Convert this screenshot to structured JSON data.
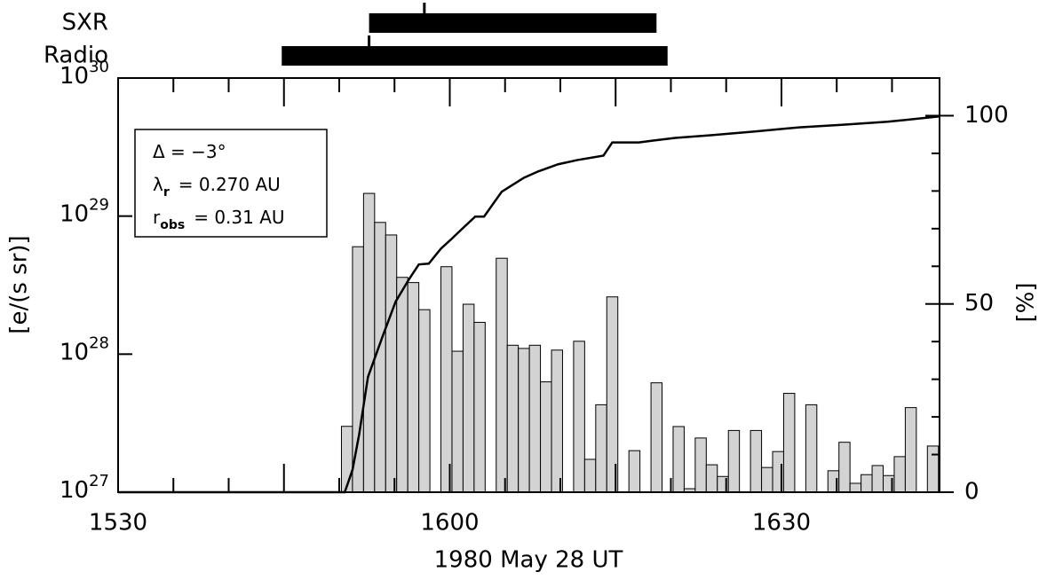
{
  "chart_data": {
    "type": "histogram",
    "x_label": "1980 May 28 UT",
    "y_label": "[e/(s sr)]",
    "y2_label": "[%]",
    "xlim": [
      30,
      104.3
    ],
    "xticks": [
      {
        "value": 30,
        "label": "1530"
      },
      {
        "value": 60,
        "label": "1600"
      },
      {
        "value": 90,
        "label": "1630"
      }
    ],
    "x_minor_ticks": [
      35,
      40,
      45,
      50,
      55,
      65,
      70,
      75,
      80,
      85,
      95,
      100
    ],
    "yscale": "log",
    "ylim": [
      1e+27,
      1e+30
    ],
    "yticks": [
      {
        "value": 1e+27,
        "label": "10",
        "exponent": "27"
      },
      {
        "value": 1e+28,
        "label": "10",
        "exponent": "28"
      },
      {
        "value": 1e+29,
        "label": "10",
        "exponent": "29"
      },
      {
        "value": 1e+30,
        "label": "10",
        "exponent": "30"
      }
    ],
    "y2lim": [
      0,
      110
    ],
    "y2ticks": [
      0,
      50,
      100
    ],
    "y2_minor_ticks": [
      10,
      20,
      30,
      40,
      60,
      70,
      80,
      90
    ],
    "color": "#d3d3d3",
    "bins": [
      50.2,
      51.2,
      52.2,
      53.2,
      54.2,
      55.2,
      56.2,
      57.2,
      58.2,
      59.2,
      60.2,
      61.2,
      62.2,
      63.2,
      64.2,
      65.2,
      66.2,
      67.2,
      68.2,
      69.2,
      70.2,
      71.2,
      72.2,
      73.2,
      74.2,
      75.2,
      76.2,
      77.2,
      78.2,
      79.2,
      80.2,
      81.2,
      82.2,
      83.2,
      84.2,
      85.2,
      86.2,
      87.2,
      88.2,
      89.2,
      90.2,
      91.2,
      92.2,
      93.2,
      94.2,
      95.2,
      96.2,
      97.2,
      98.2,
      99.2,
      100.2,
      101.2,
      102.2,
      103.2,
      104.2
    ],
    "values": [
      3e+27,
      6e+28,
      1.46e+29,
      9e+28,
      7.3e+28,
      3.6e+28,
      3.3e+28,
      2.1e+28,
      null,
      4.3e+28,
      1.05e+28,
      2.3e+28,
      1.7e+28,
      null,
      4.95e+28,
      1.16e+28,
      1.1e+28,
      1.16e+28,
      6.3e+27,
      1.07e+28,
      null,
      1.24e+28,
      1.73e+27,
      4.3e+27,
      2.6e+28,
      null,
      2e+27,
      null,
      6.2e+27,
      null,
      2.99e+27,
      1.06e+27,
      2.47e+27,
      1.58e+27,
      1.3e+27,
      2.8e+27,
      null,
      2.8e+27,
      1.51e+27,
      1.97e+27,
      5.2e+27,
      null,
      4.3e+27,
      null,
      1.43e+27,
      2.3e+27,
      1.16e+27,
      1.34e+27,
      1.56e+27,
      1.32e+27,
      1.81e+27,
      4.1e+27,
      null,
      2.16e+27
    ],
    "cumulative": {
      "type": "line",
      "axis": "y2",
      "color": "#000000",
      "x": [
        30,
        50.5,
        51.2,
        51.8,
        52.6,
        53.9,
        55.1,
        56.3,
        57.2,
        58.1,
        59.2,
        60.1,
        61.1,
        62.3,
        63.1,
        64.7,
        66.7,
        68.0,
        69.8,
        71.5,
        73.9,
        74.7,
        77.1,
        78.4,
        80.4,
        83.6,
        87.6,
        91.6,
        95.6,
        99.6,
        104.3
      ],
      "values": [
        0,
        0,
        5.9,
        15.3,
        30.6,
        41.2,
        50.6,
        56.5,
        60.5,
        60.7,
        64.7,
        67.1,
        69.9,
        73.2,
        73.2,
        79.8,
        83.5,
        85.2,
        87.1,
        88.2,
        89.4,
        92.9,
        92.9,
        93.4,
        94.1,
        94.8,
        95.8,
        96.9,
        97.6,
        98.4,
        99.8
      ]
    },
    "intervals": [
      {
        "label": "SXR",
        "start": 52.7,
        "end": 78.7,
        "peak": 57.7
      },
      {
        "label": "Radio",
        "start": 44.8,
        "end": 79.7,
        "peak": 52.7
      }
    ],
    "annotations": [
      {
        "main": "Δ = −3°"
      },
      {
        "main": "λ",
        "sub": "r",
        "rest": "= 0.270 AU"
      },
      {
        "main": "r",
        "sub": "obs",
        "rest": "= 0.31 AU"
      }
    ]
  }
}
